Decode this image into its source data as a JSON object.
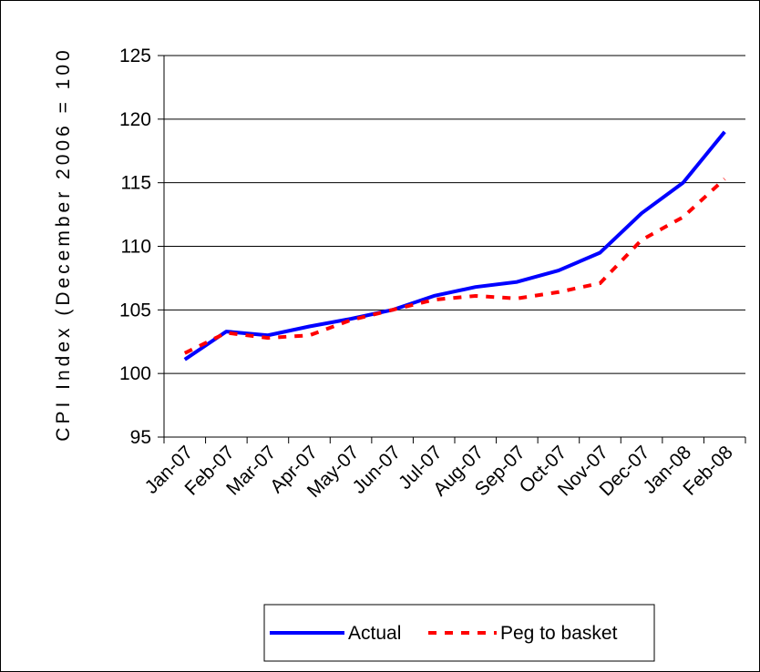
{
  "chart_data": {
    "type": "line",
    "ylabel": "CPI Index (December 2006 = 100",
    "xlabel": "",
    "categories": [
      "Jan-07",
      "Feb-07",
      "Mar-07",
      "Apr-07",
      "May-07",
      "Jun-07",
      "Jul-07",
      "Aug-07",
      "Sep-07",
      "Oct-07",
      "Nov-07",
      "Dec-07",
      "Jan-08",
      "Feb-08"
    ],
    "ylim": [
      95,
      125
    ],
    "yticks": [
      95,
      100,
      105,
      110,
      115,
      120,
      125
    ],
    "grid": "horizontal",
    "legend_position": "bottom",
    "series": [
      {
        "name": "Actual",
        "color": "#0000ff",
        "style": "solid",
        "values": [
          101.1,
          103.3,
          103.0,
          103.7,
          104.3,
          105.0,
          106.1,
          106.8,
          107.2,
          108.1,
          109.5,
          112.6,
          115.0,
          119.0
        ]
      },
      {
        "name": "Peg to basket",
        "color": "#ff0000",
        "style": "dashed",
        "values": [
          101.6,
          103.2,
          102.8,
          103.0,
          104.2,
          105.0,
          105.8,
          106.1,
          105.9,
          106.4,
          107.1,
          110.5,
          112.3,
          115.3
        ]
      }
    ]
  }
}
